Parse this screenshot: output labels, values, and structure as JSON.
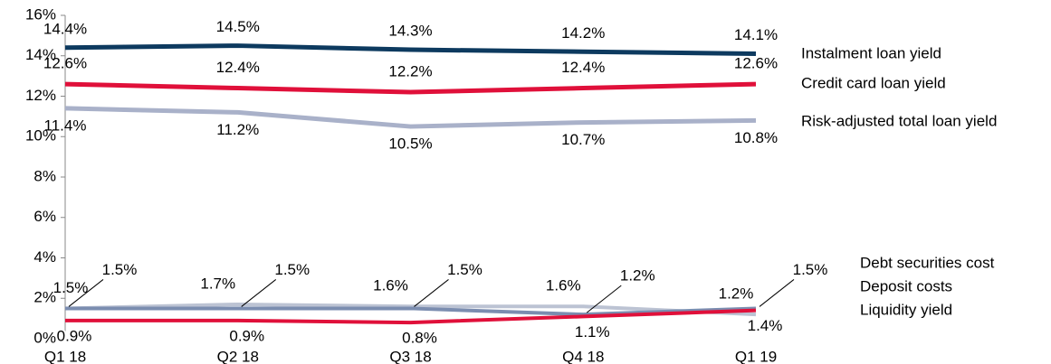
{
  "chart_data": {
    "type": "line",
    "categories": [
      "Q1 18",
      "Q2 18",
      "Q3 18",
      "Q4 18",
      "Q1 19"
    ],
    "ylim": [
      0,
      16
    ],
    "yticks": [
      {
        "value": 0,
        "label": "0%"
      },
      {
        "value": 2,
        "label": "2%"
      },
      {
        "value": 4,
        "label": "4%"
      },
      {
        "value": 6,
        "label": "6%"
      },
      {
        "value": 8,
        "label": "8%"
      },
      {
        "value": 10,
        "label": "10%"
      },
      {
        "value": 12,
        "label": "12%"
      },
      {
        "value": 14,
        "label": "14%"
      },
      {
        "value": 16,
        "label": "16%"
      }
    ],
    "grid": false,
    "series": [
      {
        "name": "Instalment loan yield",
        "color": "#0d3a5f",
        "values": [
          14.4,
          14.5,
          14.3,
          14.2,
          14.1
        ],
        "value_labels": [
          "14.4%",
          "14.5%",
          "14.3%",
          "14.2%",
          "14.1%"
        ]
      },
      {
        "name": "Credit card loan yield",
        "color": "#e0103a",
        "values": [
          12.6,
          12.4,
          12.2,
          12.4,
          12.6
        ],
        "value_labels": [
          "12.6%",
          "12.4%",
          "12.2%",
          "12.4%",
          "12.6%"
        ]
      },
      {
        "name": "Risk-adjusted total loan yield",
        "color": "#a9b1c9",
        "values": [
          11.4,
          11.2,
          10.5,
          10.7,
          10.8
        ],
        "value_labels": [
          "11.4%",
          "11.2%",
          "10.5%",
          "10.7%",
          "10.8%"
        ]
      },
      {
        "name": "Debt securities cost",
        "color": "#bcc3d3",
        "values": [
          1.5,
          1.7,
          1.6,
          1.6,
          1.2
        ],
        "value_labels": [
          "1.5%",
          "1.7%",
          "1.6%",
          "1.6%",
          "1.2%"
        ]
      },
      {
        "name": "Deposit costs",
        "color": "#7b8db0",
        "values": [
          1.5,
          1.5,
          1.5,
          1.2,
          1.5
        ],
        "value_labels": [
          "1.5%",
          "1.5%",
          "1.5%",
          "1.2%",
          "1.5%"
        ]
      },
      {
        "name": "Liquidity yield",
        "color": "#e0103a",
        "values": [
          0.9,
          0.9,
          0.8,
          1.1,
          1.4
        ],
        "value_labels": [
          "0.9%",
          "0.9%",
          "0.8%",
          "1.1%",
          "1.4%"
        ]
      }
    ]
  }
}
